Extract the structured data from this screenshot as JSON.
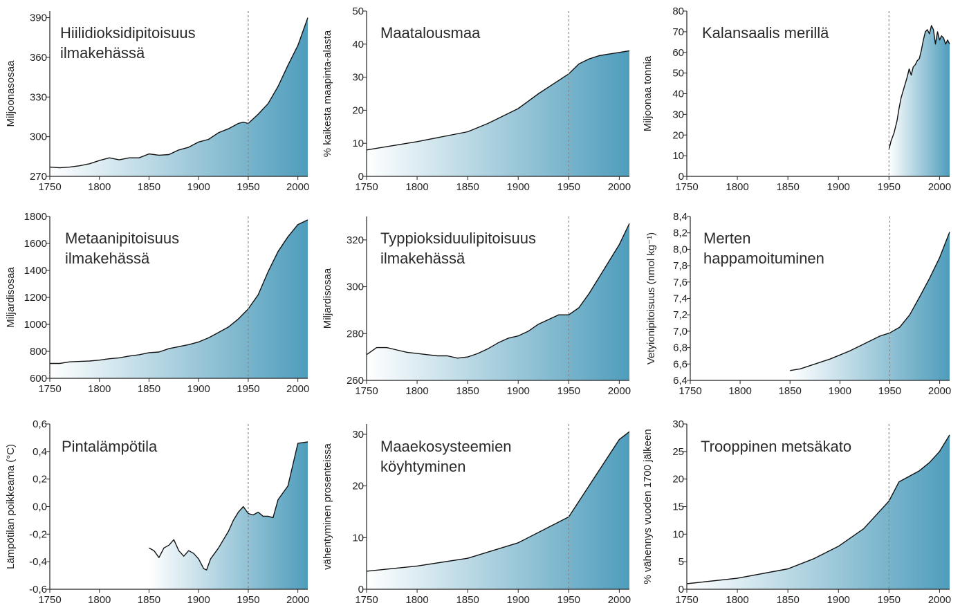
{
  "gradient": {
    "start": "#ffffff",
    "end": "#4f9dbc"
  },
  "axis_color": "#222222",
  "line_color": "#111111",
  "ref_line_color": "#888888",
  "chart_data": [
    {
      "type": "area",
      "title_lines": [
        "Hiilidioksidipitoisuus",
        "ilmakehässä"
      ],
      "ylabel": "Miljoonasosaa",
      "xlim": [
        1750,
        2010
      ],
      "ylim": [
        270,
        395
      ],
      "xticks": [
        1750,
        1800,
        1850,
        1900,
        1950,
        2000
      ],
      "xtick_labels": [
        "1750",
        "1800",
        "1850",
        "1900",
        "1950",
        "2000"
      ],
      "yticks": [
        270,
        300,
        330,
        360,
        390
      ],
      "ytick_labels": [
        "270",
        "300",
        "330",
        "360",
        "390"
      ],
      "ref_x": 1950,
      "x": [
        1750,
        1760,
        1770,
        1780,
        1790,
        1800,
        1810,
        1820,
        1830,
        1840,
        1850,
        1860,
        1870,
        1880,
        1890,
        1900,
        1910,
        1920,
        1930,
        1940,
        1945,
        1950,
        1960,
        1970,
        1980,
        1990,
        2000,
        2010
      ],
      "y": [
        277,
        276.5,
        277,
        278,
        279.5,
        282,
        284,
        282.5,
        284,
        284,
        287,
        286,
        286.5,
        290,
        292,
        296,
        298,
        303,
        306,
        310,
        311,
        310,
        317,
        325,
        338,
        354,
        369,
        390
      ]
    },
    {
      "type": "area",
      "title_lines": [
        "Maatalousmaa"
      ],
      "ylabel": "% kaikesta maapinta-alasta",
      "xlim": [
        1750,
        2010
      ],
      "ylim": [
        0,
        50
      ],
      "xticks": [
        1750,
        1800,
        1850,
        1900,
        1950,
        2000
      ],
      "xtick_labels": [
        "1750",
        "1800",
        "1850",
        "1900",
        "1950",
        "2000"
      ],
      "yticks": [
        0,
        10,
        20,
        30,
        40,
        50
      ],
      "ytick_labels": [
        "0",
        "10",
        "20",
        "30",
        "40",
        "50"
      ],
      "ref_x": 1950,
      "x": [
        1750,
        1800,
        1850,
        1870,
        1900,
        1920,
        1950,
        1960,
        1970,
        1980,
        1990,
        2000,
        2010
      ],
      "y": [
        8,
        10.5,
        13.5,
        16,
        20.5,
        25,
        31,
        34,
        35.5,
        36.5,
        37,
        37.5,
        38
      ]
    },
    {
      "type": "area",
      "title_lines": [
        "Kalansaalis merillä"
      ],
      "ylabel": "Miljoonaa tonnia",
      "xlim": [
        1750,
        2010
      ],
      "ylim": [
        0,
        80
      ],
      "xticks": [
        1750,
        1800,
        1850,
        1900,
        1950,
        2000
      ],
      "xtick_labels": [
        "1750",
        "1800",
        "1850",
        "1900",
        "1950",
        "2000"
      ],
      "yticks": [
        0,
        10,
        20,
        30,
        40,
        50,
        60,
        70,
        80
      ],
      "ytick_labels": [
        "0",
        "10",
        "20",
        "30",
        "40",
        "50",
        "60",
        "70",
        "80"
      ],
      "ref_x": 1950,
      "x": [
        1950,
        1952,
        1955,
        1958,
        1960,
        1962,
        1965,
        1968,
        1970,
        1972,
        1974,
        1976,
        1978,
        1980,
        1982,
        1984,
        1986,
        1988,
        1990,
        1992,
        1994,
        1996,
        1998,
        2000,
        2002,
        2004,
        2006,
        2008,
        2010
      ],
      "y": [
        13,
        17,
        21,
        27,
        33,
        38,
        43,
        48,
        52,
        49,
        53,
        54,
        56,
        57,
        61,
        66,
        70,
        71,
        69,
        73,
        71,
        64,
        70,
        66,
        68,
        67,
        64,
        66,
        64
      ]
    },
    {
      "type": "area",
      "title_lines": [
        "Metaanipitoisuus",
        "ilmakehässä"
      ],
      "ylabel": "Miljardisosaa",
      "xlim": [
        1750,
        2010
      ],
      "ylim": [
        600,
        1800
      ],
      "xticks": [
        1750,
        1800,
        1850,
        1900,
        1950,
        2000
      ],
      "xtick_labels": [
        "1750",
        "1800",
        "1850",
        "1900",
        "1950",
        "2000"
      ],
      "yticks": [
        600,
        800,
        1000,
        1200,
        1400,
        1600,
        1800
      ],
      "ytick_labels": [
        "600",
        "800",
        "1000",
        "1200",
        "1400",
        "1600",
        "1800"
      ],
      "ref_x": 1950,
      "x": [
        1750,
        1760,
        1770,
        1780,
        1790,
        1800,
        1810,
        1820,
        1830,
        1840,
        1850,
        1860,
        1870,
        1880,
        1890,
        1900,
        1910,
        1920,
        1930,
        1940,
        1950,
        1960,
        1970,
        1980,
        1990,
        2000,
        2010
      ],
      "y": [
        710,
        710,
        722,
        725,
        728,
        735,
        745,
        752,
        765,
        775,
        790,
        795,
        820,
        835,
        850,
        870,
        900,
        940,
        980,
        1040,
        1115,
        1220,
        1390,
        1540,
        1650,
        1740,
        1775
      ]
    },
    {
      "type": "area",
      "title_lines": [
        "Typpioksiduulipitoisuus",
        "ilmakehässä"
      ],
      "ylabel": "Miljardisosaa",
      "xlim": [
        1750,
        2010
      ],
      "ylim": [
        260,
        330
      ],
      "xticks": [
        1750,
        1800,
        1850,
        1900,
        1950,
        2000
      ],
      "xtick_labels": [
        "1750",
        "1800",
        "1850",
        "1900",
        "1950",
        "2000"
      ],
      "yticks": [
        260,
        280,
        300,
        320
      ],
      "ytick_labels": [
        "260",
        "280",
        "300",
        "320"
      ],
      "ref_x": 1950,
      "x": [
        1750,
        1760,
        1770,
        1780,
        1790,
        1800,
        1810,
        1820,
        1830,
        1840,
        1850,
        1860,
        1870,
        1880,
        1890,
        1900,
        1910,
        1920,
        1930,
        1940,
        1950,
        1960,
        1970,
        1980,
        1990,
        2000,
        2010
      ],
      "y": [
        271,
        274,
        274,
        273,
        272,
        271.5,
        271,
        270.5,
        270.5,
        269.5,
        270,
        271.5,
        273.5,
        276,
        278,
        279,
        281,
        284,
        286,
        288,
        288,
        291,
        297,
        304,
        311,
        318,
        327
      ]
    },
    {
      "type": "area",
      "title_lines": [
        "Merten",
        "happamoituminen"
      ],
      "ylabel": "Vetyionipitoisuus (nmol kg⁻¹)",
      "xlim": [
        1750,
        2010
      ],
      "ylim": [
        6.4,
        8.4
      ],
      "xticks": [
        1750,
        1800,
        1850,
        1900,
        1950,
        2000
      ],
      "xtick_labels": [
        "1750",
        "1800",
        "1850",
        "1900",
        "1950",
        "2000"
      ],
      "yticks": [
        6.4,
        6.6,
        6.8,
        7.0,
        7.2,
        7.4,
        7.6,
        7.8,
        8.0,
        8.2,
        8.4
      ],
      "ytick_labels": [
        "6,4",
        "6,6",
        "6,8",
        "7,0",
        "7,2",
        "7,4",
        "7,6",
        "7,8",
        "8,0",
        "8,2",
        "8,4"
      ],
      "ref_x": 1950,
      "x": [
        1850,
        1855,
        1860,
        1870,
        1880,
        1890,
        1900,
        1910,
        1920,
        1930,
        1940,
        1950,
        1960,
        1970,
        1980,
        1990,
        2000,
        2010
      ],
      "y": [
        6.52,
        6.53,
        6.54,
        6.58,
        6.62,
        6.66,
        6.71,
        6.76,
        6.82,
        6.88,
        6.94,
        6.98,
        7.05,
        7.2,
        7.42,
        7.65,
        7.9,
        8.21
      ]
    },
    {
      "type": "area",
      "title_lines": [
        "Pintalämpötila"
      ],
      "ylabel": "Lämpötilan poikkeama (°C)",
      "xlim": [
        1750,
        2010
      ],
      "ylim": [
        -0.6,
        0.6
      ],
      "xticks": [
        1750,
        1800,
        1850,
        1900,
        1950,
        2000
      ],
      "xtick_labels": [
        "1750",
        "1800",
        "1850",
        "1900",
        "1950",
        "2000"
      ],
      "yticks": [
        -0.6,
        -0.4,
        -0.2,
        0.0,
        0.2,
        0.4,
        0.6
      ],
      "ytick_labels": [
        "-0,6",
        "-0,4",
        "-0,2",
        "0,0",
        "0,2",
        "0,4",
        "0,6"
      ],
      "ref_x": 1950,
      "x": [
        1850,
        1855,
        1860,
        1865,
        1870,
        1875,
        1880,
        1885,
        1890,
        1895,
        1900,
        1905,
        1908,
        1912,
        1920,
        1930,
        1935,
        1940,
        1945,
        1950,
        1955,
        1960,
        1965,
        1970,
        1975,
        1980,
        1990,
        2000,
        2010
      ],
      "y": [
        -0.3,
        -0.32,
        -0.37,
        -0.3,
        -0.28,
        -0.24,
        -0.32,
        -0.36,
        -0.32,
        -0.34,
        -0.38,
        -0.45,
        -0.46,
        -0.38,
        -0.3,
        -0.18,
        -0.1,
        -0.04,
        0.0,
        -0.05,
        -0.06,
        -0.04,
        -0.07,
        -0.07,
        -0.08,
        0.05,
        0.15,
        0.46,
        0.47
      ]
    },
    {
      "type": "area",
      "title_lines": [
        "Maaekosysteemien",
        "köyhtyminen"
      ],
      "ylabel": "vähentyminen prosenteissa",
      "xlim": [
        1750,
        2010
      ],
      "ylim": [
        0,
        32
      ],
      "xticks": [
        1750,
        1800,
        1850,
        1900,
        1950,
        2000
      ],
      "xtick_labels": [
        "1750",
        "1800",
        "1850",
        "1900",
        "1950",
        "2000"
      ],
      "yticks": [
        0,
        10,
        20,
        30
      ],
      "ytick_labels": [
        "0",
        "10",
        "20",
        "30"
      ],
      "ref_x": 1950,
      "x": [
        1750,
        1800,
        1850,
        1900,
        1950,
        2000,
        2010
      ],
      "y": [
        3.5,
        4.5,
        6,
        9,
        14,
        29,
        30.5
      ]
    },
    {
      "type": "area",
      "title_lines": [
        "Trooppinen metsäkato"
      ],
      "ylabel": "% vähennys vuoden 1700 jälkeen",
      "xlim": [
        1750,
        2010
      ],
      "ylim": [
        0,
        30
      ],
      "xticks": [
        1750,
        1800,
        1850,
        1900,
        1950,
        2000
      ],
      "xtick_labels": [
        "1750",
        "1800",
        "1850",
        "1900",
        "1950",
        "2000"
      ],
      "yticks": [
        0,
        5,
        10,
        15,
        20,
        25,
        30
      ],
      "ytick_labels": [
        "0",
        "5",
        "10",
        "15",
        "20",
        "25",
        "30"
      ],
      "ref_x": 1950,
      "x": [
        1750,
        1800,
        1850,
        1875,
        1900,
        1925,
        1950,
        1960,
        1970,
        1980,
        1990,
        2000,
        2010
      ],
      "y": [
        1,
        2,
        3.7,
        5.5,
        7.8,
        11,
        16,
        19.5,
        20.5,
        21.5,
        23,
        25,
        28
      ]
    }
  ]
}
